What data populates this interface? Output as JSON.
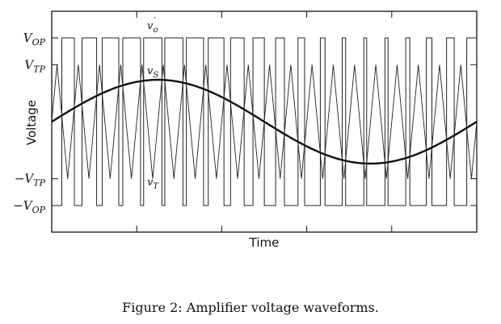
{
  "caption": "Figure 2: Amplifier voltage waveforms.",
  "chart_data": {
    "type": "line",
    "xlabel": "Time",
    "ylabel": "Voltage",
    "grid": false,
    "xlim": [
      0,
      1
    ],
    "ylim": [
      -1.3,
      1.3
    ],
    "yticks": [
      {
        "label": "V_OP",
        "value": 1.0
      },
      {
        "label": "V_TP",
        "value": 0.68
      },
      {
        "label": "−V_TP",
        "value": -0.68
      },
      {
        "label": "−V_OP",
        "value": -1.0
      }
    ],
    "carrier_cycles": 20,
    "series": [
      {
        "name": "v_S",
        "kind": "sine",
        "amplitude": 0.5,
        "cycles": 1,
        "stroke_color": "#111111",
        "emphasis": "bold"
      },
      {
        "name": "v_T",
        "kind": "triangle",
        "amplitude": 0.68,
        "cycles": 20,
        "stroke_color": "#222222"
      },
      {
        "name": "v_o′",
        "kind": "pwm",
        "amplitude": 1.0,
        "cycles": 20,
        "stroke_color": "#222222"
      }
    ],
    "series_labels": {
      "v_o": {
        "base": "v",
        "sub": "o",
        "prime": "′"
      },
      "v_S": {
        "base": "v",
        "sub": "S"
      },
      "v_T": {
        "base": "v",
        "sub": "T"
      }
    }
  }
}
